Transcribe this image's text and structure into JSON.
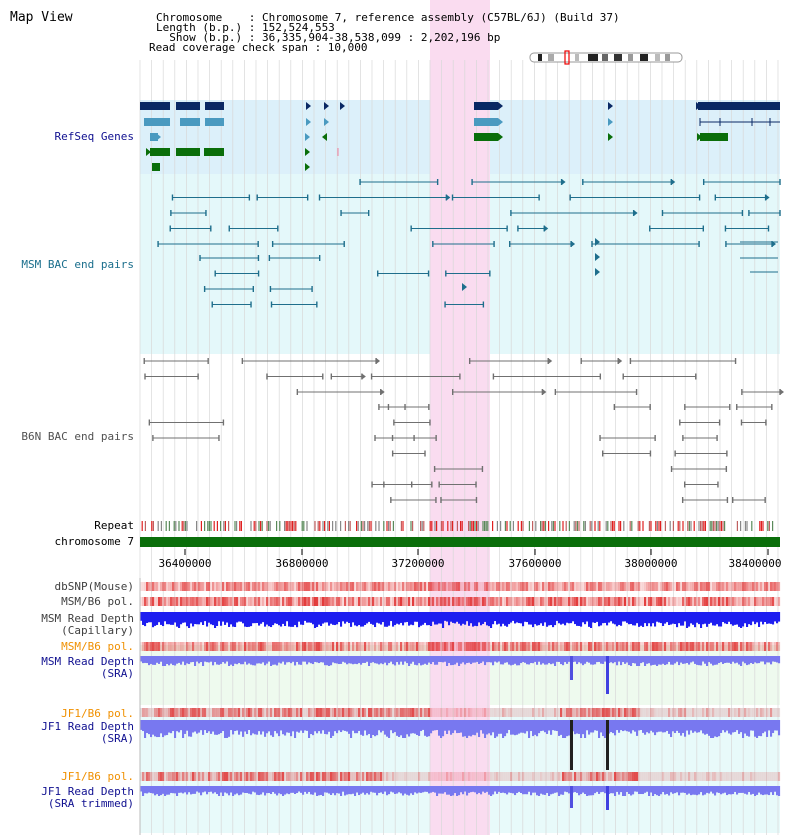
{
  "view": {
    "title": "Map View"
  },
  "header": {
    "lines": [
      "Chromosome    : Chromosome 7, reference assembly (C57BL/6J) (Build 37)",
      "Length (b.p.) : 152,524,553",
      "  Show (b.p.) : 36,335,904-38,538,099 : 2,202,196 bp",
      "Read coverage check span : 10,000"
    ]
  },
  "tracks": {
    "refseq": "RefSeq Genes",
    "msm_bac": "MSM BAC end pairs",
    "b6n_bac": "B6N BAC end pairs",
    "repeat": "Repeat",
    "chromosome": "chromosome 7",
    "dbsnp": "dbSNP(Mouse)",
    "msm_b6_pol_1": "MSM/B6 pol.",
    "msm_depth_cap_1": "MSM Read Depth",
    "msm_depth_cap_2": "(Capillary)",
    "msm_b6_pol_2": "MSM/B6 pol.",
    "msm_depth_sra_1": "MSM Read Depth",
    "msm_depth_sra_2": "(SRA)",
    "jf1_b6_pol_1": "JF1/B6 pol.",
    "jf1_depth_sra_1": "JF1 Read Depth",
    "jf1_depth_sra_2": "(SRA)",
    "jf1_b6_pol_2": "JF1/B6 pol.",
    "jf1_depth_trim_1": "JF1 Read Depth",
    "jf1_depth_trim_2": "(SRA trimmed)"
  },
  "axis": {
    "ticks": [
      "36400000",
      "36800000",
      "37200000",
      "37600000",
      "38000000",
      "38400000"
    ]
  },
  "colors": {
    "refseq_bg": "#dcf0fa",
    "msm_bg": "#e4f8fa",
    "highlight": "#fadcf0",
    "gene_dark": "#0a2864",
    "gene_light": "#4a9ac0",
    "gene_green": "#0a6e0a",
    "bac_msm": "#1e6e8c",
    "bac_b6n": "#707070",
    "chromosome": "#0a6e0a",
    "depth_blue": "#1e1ef0",
    "depth_light": "#7878f0",
    "pol_red": "#e03030",
    "orange_label": "#f09000",
    "navy_label": "#101090",
    "teal_label": "#1a6e8c"
  }
}
